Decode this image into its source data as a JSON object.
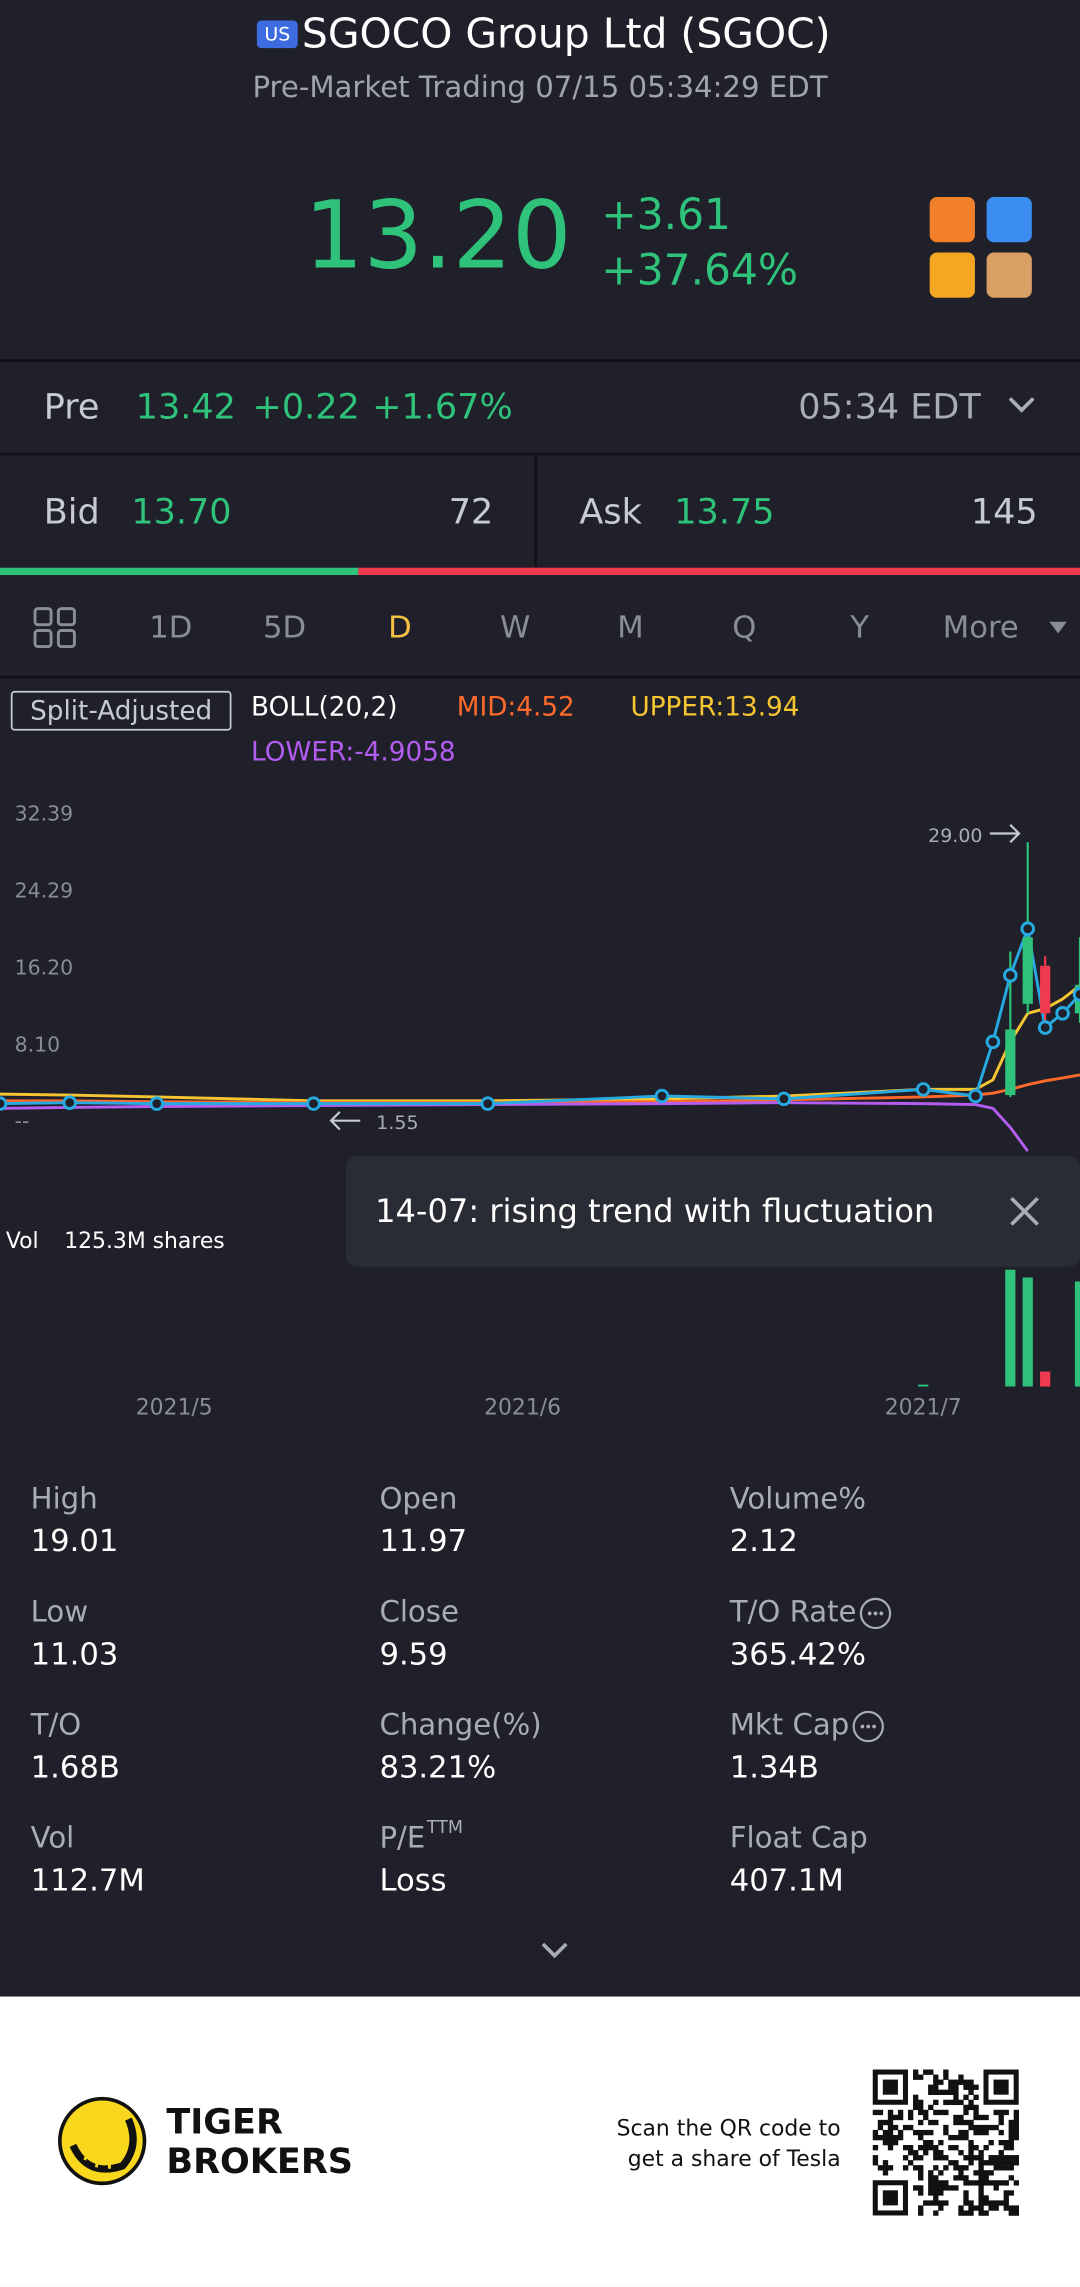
{
  "header": {
    "badge": "US",
    "title": "SGOCO Group Ltd (SGOC)",
    "subtitle": "Pre-Market Trading 07/15 05:34:29 EDT"
  },
  "quote": {
    "price": "13.20",
    "change": "+3.61",
    "change_pct": "+37.64%"
  },
  "pre": {
    "label": "Pre",
    "price": "13.42",
    "change": "+0.22",
    "change_pct": "+1.67%",
    "time": "05:34 EDT"
  },
  "bid_ask": {
    "bid_label": "Bid",
    "bid": "13.70",
    "bid_size": 72,
    "ask_label": "Ask",
    "ask": "13.75",
    "ask_size": 145
  },
  "tabs": {
    "items": [
      "1D",
      "5D",
      "D",
      "W",
      "M",
      "Q",
      "Y",
      "More"
    ],
    "active": 2
  },
  "indicator": {
    "adjust": "Split-Adjusted",
    "name": "BOLL(20,2)",
    "mid": "MID:4.52",
    "upper": "UPPER:13.94",
    "lower": "LOWER:-4.9058"
  },
  "chart_data": {
    "type": "line",
    "x": [
      0,
      4,
      9,
      18,
      28,
      38,
      45,
      53,
      56,
      57,
      58,
      59,
      60,
      61,
      62
    ],
    "xlim": [
      0,
      62
    ],
    "xticks": [
      {
        "value": 10,
        "label": "2021/5"
      },
      {
        "value": 30,
        "label": "2021/6"
      },
      {
        "value": 53,
        "label": "2021/7"
      }
    ],
    "ylim": [
      -4,
      35
    ],
    "yticks": [
      {
        "value": 0,
        "label": "--"
      },
      {
        "value": 8.1,
        "label": "8.10"
      },
      {
        "value": 16.2,
        "label": "16.20"
      },
      24.29,
      32.39
    ],
    "series": [
      {
        "color": "#f7c531",
        "values": [
          2.5,
          2.4,
          2.2,
          1.8,
          1.8,
          2.0,
          2.3,
          3.0,
          3.0,
          4,
          8,
          11,
          11.5,
          12.5,
          13.94
        ]
      },
      {
        "color": "#ff6a2b",
        "values": [
          1.8,
          1.8,
          1.7,
          1.6,
          1.6,
          1.7,
          1.9,
          2.2,
          2.4,
          2.6,
          3,
          3.5,
          3.9,
          4.2,
          4.52
        ]
      },
      {
        "color": "#b35cf0",
        "values": [
          1.0,
          1.1,
          1.2,
          1.3,
          1.4,
          1.5,
          1.6,
          1.5,
          1.4,
          1.0,
          -1,
          -3.5,
          null,
          null,
          null
        ]
      },
      {
        "color": "#27a9e1",
        "markers": true,
        "values": [
          1.5,
          1.6,
          1.5,
          1.5,
          1.5,
          2.3,
          2.0,
          3.0,
          2.3,
          8,
          15,
          19.9,
          9.5,
          11,
          13.0
        ]
      }
    ],
    "candles": {
      "x": [
        58,
        59,
        60,
        62
      ],
      "open": [
        2.4,
        12,
        16,
        11
      ],
      "close": [
        9.3,
        19,
        11,
        14
      ],
      "high": [
        17.5,
        29,
        17,
        19
      ],
      "low": [
        2.2,
        11,
        9.6,
        10
      ]
    },
    "annotations": [
      {
        "x": 59,
        "value": 29,
        "label": "29.00"
      },
      {
        "x": 18,
        "value": 1.55
      }
    ],
    "volume": {
      "label": "Vol",
      "text": "125.3M shares",
      "ylim": [
        0,
        130
      ],
      "x": [
        53,
        58,
        59,
        60,
        62
      ],
      "values": [
        2,
        125.3,
        117,
        16,
        112.7
      ],
      "colors": [
        "#2fc27a",
        "#2fc27a",
        "#2fc27a",
        "#f03a4f",
        "#2fc27a"
      ]
    }
  },
  "toast": "14-07: rising trend with fluctuation",
  "stats": [
    {
      "label": "High",
      "value": "19.01"
    },
    {
      "label": "Open",
      "value": "11.97"
    },
    {
      "label": "Volume%",
      "value": "2.12"
    },
    {
      "label": "Low",
      "value": "11.03"
    },
    {
      "label": "Close",
      "value": "9.59"
    },
    {
      "label": "T/O Rate",
      "value": "365.42%",
      "info": true
    },
    {
      "label": "T/O",
      "value": "1.68B"
    },
    {
      "label": "Change(%)",
      "value": "83.21%"
    },
    {
      "label": "Mkt Cap",
      "value": "1.34B",
      "info": true
    },
    {
      "label": "Vol",
      "value": "112.7M"
    },
    {
      "label": "P/E",
      "sup": "TTM",
      "value": "Loss"
    },
    {
      "label": "Float Cap",
      "value": "407.1M"
    }
  ],
  "footer": {
    "brand": [
      "TIGER",
      "BROKERS"
    ],
    "cta": [
      "Scan the QR code to",
      "get a share of Tesla"
    ]
  }
}
